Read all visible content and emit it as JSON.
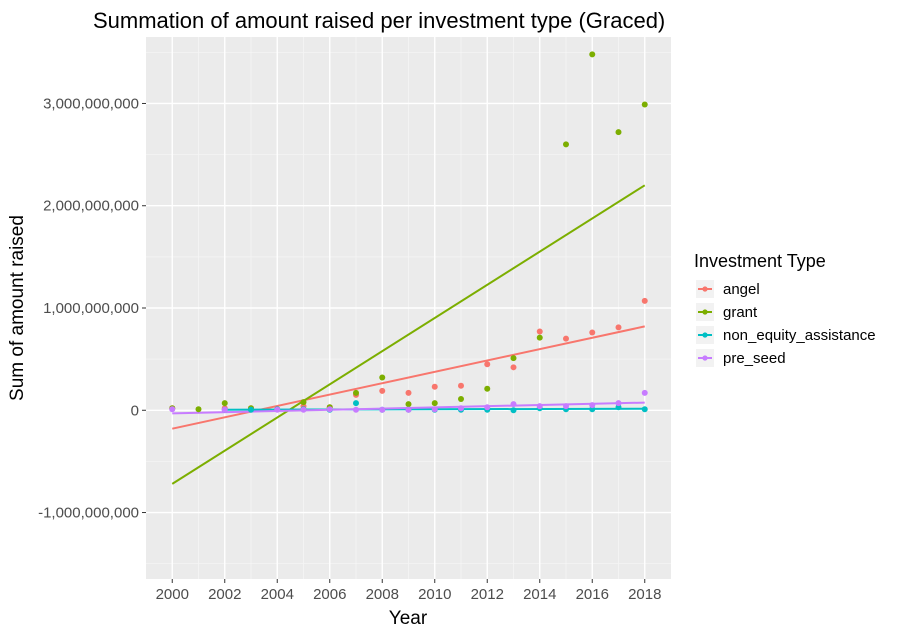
{
  "chart_data": {
    "type": "scatter",
    "title": "Summation of amount raised per investment type (Graced)",
    "xlabel": "Year",
    "ylabel": "Sum of amount raised",
    "xlim": [
      1999,
      2019
    ],
    "ylim": [
      -1650000000,
      3650000000
    ],
    "x_ticks": [
      2000,
      2002,
      2004,
      2006,
      2008,
      2010,
      2012,
      2014,
      2016,
      2018
    ],
    "x_tick_labels": [
      "2000",
      "2002",
      "2004",
      "2006",
      "2008",
      "2010",
      "2012",
      "2014",
      "2016",
      "2018"
    ],
    "y_ticks": [
      -1000000000,
      0,
      1000000000,
      2000000000,
      3000000000
    ],
    "y_tick_labels": [
      "-1,000,000,000",
      "0",
      "1,000,000,000",
      "2,000,000,000",
      "3,000,000,000"
    ],
    "grid": true,
    "legend": {
      "title": "Investment Type",
      "placement": "right"
    },
    "series": [
      {
        "name": "angel",
        "color": "#F8766D",
        "points": [
          [
            2000,
            20000000
          ],
          [
            2002,
            20000000
          ],
          [
            2003,
            20000000
          ],
          [
            2005,
            40000000
          ],
          [
            2006,
            30000000
          ],
          [
            2007,
            150000000
          ],
          [
            2008,
            190000000
          ],
          [
            2009,
            170000000
          ],
          [
            2010,
            230000000
          ],
          [
            2011,
            240000000
          ],
          [
            2012,
            450000000
          ],
          [
            2013,
            420000000
          ],
          [
            2014,
            770000000
          ],
          [
            2015,
            700000000
          ],
          [
            2016,
            760000000
          ],
          [
            2017,
            810000000
          ],
          [
            2018,
            1070000000
          ]
        ],
        "trend": [
          [
            2000,
            -180000000
          ],
          [
            2018,
            820000000
          ]
        ]
      },
      {
        "name": "grant",
        "color": "#7CAE00",
        "points": [
          [
            2000,
            20000000
          ],
          [
            2001,
            10000000
          ],
          [
            2002,
            70000000
          ],
          [
            2003,
            20000000
          ],
          [
            2005,
            80000000
          ],
          [
            2006,
            30000000
          ],
          [
            2007,
            170000000
          ],
          [
            2008,
            320000000
          ],
          [
            2009,
            60000000
          ],
          [
            2010,
            70000000
          ],
          [
            2011,
            110000000
          ],
          [
            2012,
            210000000
          ],
          [
            2013,
            510000000
          ],
          [
            2014,
            710000000
          ],
          [
            2015,
            2600000000
          ],
          [
            2016,
            3480000000
          ],
          [
            2017,
            2720000000
          ],
          [
            2018,
            2990000000
          ]
        ],
        "trend": [
          [
            2000,
            -720000000
          ],
          [
            2018,
            2200000000
          ]
        ]
      },
      {
        "name": "non_equity_assistance",
        "color": "#00BFC4",
        "points": [
          [
            2002,
            5000000
          ],
          [
            2003,
            5000000
          ],
          [
            2004,
            10000000
          ],
          [
            2005,
            10000000
          ],
          [
            2006,
            5000000
          ],
          [
            2007,
            70000000
          ],
          [
            2008,
            5000000
          ],
          [
            2009,
            5000000
          ],
          [
            2010,
            5000000
          ],
          [
            2011,
            5000000
          ],
          [
            2012,
            5000000
          ],
          [
            2013,
            0
          ],
          [
            2014,
            20000000
          ],
          [
            2015,
            10000000
          ],
          [
            2016,
            10000000
          ],
          [
            2017,
            30000000
          ],
          [
            2018,
            10000000
          ]
        ],
        "trend": [
          [
            2002,
            5000000
          ],
          [
            2018,
            15000000
          ]
        ]
      },
      {
        "name": "pre_seed",
        "color": "#C77CFF",
        "points": [
          [
            2000,
            10000000
          ],
          [
            2002,
            5000000
          ],
          [
            2004,
            5000000
          ],
          [
            2005,
            5000000
          ],
          [
            2006,
            10000000
          ],
          [
            2007,
            5000000
          ],
          [
            2008,
            5000000
          ],
          [
            2009,
            5000000
          ],
          [
            2010,
            10000000
          ],
          [
            2011,
            20000000
          ],
          [
            2012,
            30000000
          ],
          [
            2013,
            60000000
          ],
          [
            2014,
            40000000
          ],
          [
            2015,
            40000000
          ],
          [
            2016,
            50000000
          ],
          [
            2017,
            70000000
          ],
          [
            2018,
            170000000
          ]
        ],
        "trend": [
          [
            2000,
            -30000000
          ],
          [
            2018,
            75000000
          ]
        ]
      }
    ]
  }
}
